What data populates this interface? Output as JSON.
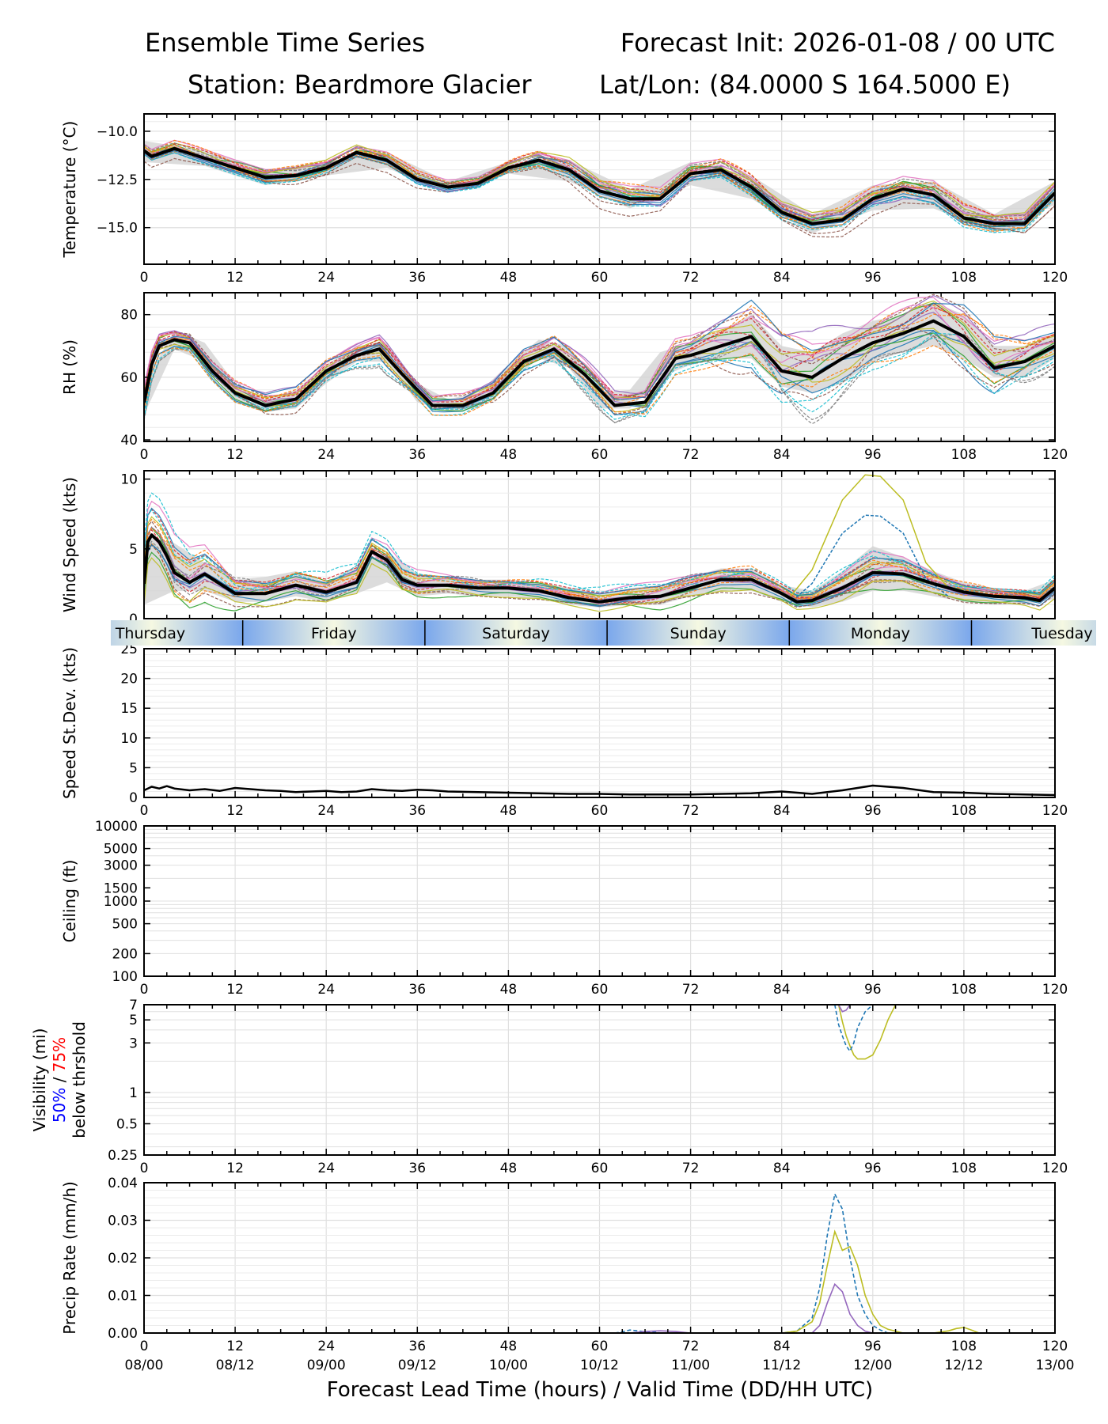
{
  "header": {
    "left_line1": "Ensemble Time Series",
    "right_line1": "Forecast Init: 2026-01-08 / 00 UTC",
    "left_line2": "Station: Beardmore Glacier",
    "right_line2": "Lat/Lon: (84.0000 S 164.5000 E)"
  },
  "colors": {
    "mean": "#000000",
    "spread_band": "#d3d3d3",
    "grid": "#e0e0e0",
    "pct50": "#0000ff",
    "pct75": "#ff0000",
    "members": [
      "#1f77b4",
      "#ff7f0e",
      "#2ca02c",
      "#d62728",
      "#9467bd",
      "#8c564b",
      "#e377c2",
      "#7f7f7f",
      "#bcbd22",
      "#17becf"
    ]
  },
  "chart_data": [
    {
      "id": "temperature",
      "type": "line",
      "ylabel": "Temperature (°C)",
      "ylim": [
        -16.9,
        -9.1
      ],
      "yticks": [
        -10.0,
        -12.5,
        -15.0
      ],
      "ytick_labels": [
        "−10.0",
        "−12.5",
        "−15.0"
      ],
      "xlim": [
        0,
        120
      ],
      "xticks": [
        0,
        12,
        24,
        36,
        48,
        60,
        72,
        84,
        96,
        108,
        120
      ],
      "mean": {
        "x": [
          0,
          1,
          4,
          8,
          12,
          16,
          20,
          24,
          28,
          32,
          36,
          40,
          44,
          48,
          52,
          56,
          60,
          64,
          68,
          72,
          76,
          80,
          84,
          88,
          92,
          96,
          100,
          104,
          108,
          112,
          116,
          120
        ],
        "y": [
          -11.0,
          -11.3,
          -10.9,
          -11.4,
          -11.9,
          -12.4,
          -12.3,
          -11.9,
          -11.1,
          -11.5,
          -12.5,
          -12.9,
          -12.7,
          -11.9,
          -11.5,
          -12.0,
          -13.1,
          -13.5,
          -13.5,
          -12.2,
          -12.0,
          -12.9,
          -14.2,
          -14.8,
          -14.6,
          -13.5,
          -13.0,
          -13.3,
          -14.5,
          -14.8,
          -14.8,
          -13.2
        ]
      },
      "spread": {
        "x": [
          0,
          8,
          16,
          24,
          32,
          40,
          48,
          56,
          64,
          72,
          80,
          88,
          96,
          104,
          112,
          120
        ],
        "lo": [
          -11.6,
          -11.8,
          -12.8,
          -12.3,
          -11.9,
          -13.2,
          -12.2,
          -12.6,
          -14.0,
          -12.8,
          -13.5,
          -15.3,
          -14.1,
          -14.0,
          -15.3,
          -13.8
        ],
        "hi": [
          -10.5,
          -11.0,
          -12.0,
          -11.6,
          -11.1,
          -12.6,
          -11.6,
          -11.5,
          -13.0,
          -11.6,
          -12.3,
          -14.3,
          -12.8,
          -12.6,
          -14.3,
          -12.6
        ]
      },
      "member_spread": [
        0.35,
        0.4,
        0.45,
        0.35,
        0.4,
        0.35,
        0.3,
        0.55,
        0.6,
        0.5,
        0.55,
        0.5,
        0.6,
        0.65,
        0.55,
        0.5
      ]
    },
    {
      "id": "rh",
      "type": "line",
      "ylabel": "RH (%)",
      "ylim": [
        39.5,
        87
      ],
      "yticks": [
        40,
        60,
        80
      ],
      "ytick_labels": [
        "40",
        "60",
        "80"
      ],
      "xlim": [
        0,
        120
      ],
      "xticks": [
        0,
        12,
        24,
        36,
        48,
        60,
        72,
        84,
        96,
        108,
        120
      ],
      "mean": {
        "x": [
          0,
          1,
          2,
          4,
          6,
          9,
          12,
          16,
          20,
          24,
          28,
          31,
          34,
          38,
          42,
          46,
          50,
          54,
          58,
          62,
          66,
          70,
          72,
          76,
          80,
          84,
          88,
          92,
          96,
          100,
          104,
          108,
          112,
          116,
          120
        ],
        "y": [
          52,
          64,
          70,
          72,
          71,
          62,
          55,
          51,
          53,
          62,
          67,
          69,
          61,
          51,
          51,
          55,
          65,
          69,
          61,
          51,
          52,
          66,
          67,
          70,
          73,
          62,
          60,
          66,
          71,
          74,
          78,
          73,
          63,
          65,
          70
        ]
      },
      "spread": {
        "x": [
          0,
          4,
          8,
          12,
          16,
          20,
          24,
          28,
          32,
          36,
          40,
          44,
          48,
          52,
          56,
          60,
          64,
          68,
          72,
          76,
          80,
          84,
          88,
          92,
          96,
          100,
          104,
          108,
          112,
          116,
          120
        ],
        "lo": [
          48,
          69,
          65,
          52,
          49,
          50,
          58,
          65,
          65,
          52,
          49,
          50,
          58,
          66,
          63,
          50,
          50,
          60,
          64,
          66,
          66,
          57,
          55,
          58,
          65,
          68,
          70,
          66,
          60,
          60,
          66
        ],
        "hi": [
          58,
          75,
          71,
          58,
          53,
          56,
          64,
          70,
          71,
          58,
          53,
          55,
          64,
          72,
          70,
          55,
          56,
          68,
          71,
          75,
          80,
          70,
          68,
          74,
          78,
          80,
          84,
          80,
          70,
          70,
          74
        ]
      },
      "member_spread": [
        4,
        3,
        3,
        3,
        3,
        3,
        3,
        3,
        4,
        3,
        3,
        3,
        3,
        3,
        4,
        4,
        4,
        5,
        5,
        7,
        9,
        10,
        10,
        9,
        8,
        8,
        8,
        9,
        8,
        6,
        5
      ]
    },
    {
      "id": "wind_speed",
      "type": "line",
      "ylabel": "Wind Speed (kts)",
      "ylim": [
        0,
        10.6
      ],
      "yticks": [
        0,
        5,
        10
      ],
      "ytick_labels": [
        "0",
        "5",
        "10"
      ],
      "xlim": [
        0,
        120
      ],
      "xticks": [
        0,
        12,
        24,
        36,
        48,
        60,
        72,
        84,
        96,
        108,
        120
      ],
      "mean": {
        "x": [
          0,
          0.5,
          1,
          2,
          3,
          4,
          6,
          8,
          10,
          12,
          16,
          20,
          24,
          28,
          30,
          32,
          34,
          36,
          40,
          44,
          48,
          52,
          56,
          60,
          64,
          68,
          72,
          76,
          80,
          84,
          86,
          88,
          92,
          96,
          100,
          104,
          108,
          112,
          116,
          118,
          120
        ],
        "y": [
          2.5,
          5.5,
          6.0,
          5.5,
          4.5,
          3.3,
          2.6,
          3.2,
          2.5,
          1.8,
          1.8,
          2.4,
          1.9,
          2.6,
          4.8,
          4.2,
          2.8,
          2.4,
          2.4,
          2.2,
          2.2,
          2.0,
          1.5,
          1.2,
          1.5,
          1.6,
          2.2,
          2.8,
          2.8,
          1.8,
          1.2,
          1.3,
          2.2,
          3.3,
          3.2,
          2.5,
          1.9,
          1.6,
          1.5,
          1.3,
          2.2
        ]
      },
      "spread": {
        "x": [
          0,
          4,
          8,
          12,
          16,
          20,
          24,
          28,
          32,
          36,
          40,
          44,
          48,
          52,
          56,
          60,
          64,
          68,
          72,
          76,
          80,
          84,
          88,
          92,
          96,
          100,
          104,
          108,
          112,
          116,
          120
        ],
        "lo": [
          1.0,
          2.0,
          2.0,
          1.2,
          1.2,
          1.6,
          1.2,
          1.8,
          2.6,
          1.6,
          1.8,
          1.6,
          1.6,
          1.4,
          1.0,
          0.8,
          1.0,
          1.0,
          1.6,
          2.0,
          2.0,
          1.2,
          0.8,
          1.2,
          2.0,
          2.0,
          1.6,
          1.2,
          1.0,
          1.0,
          1.4
        ],
        "hi": [
          6.0,
          5.4,
          4.0,
          2.8,
          3.0,
          3.4,
          2.6,
          3.8,
          4.8,
          3.2,
          3.0,
          2.8,
          2.8,
          2.6,
          2.2,
          1.8,
          2.2,
          2.4,
          3.0,
          3.6,
          3.6,
          2.4,
          2.0,
          3.4,
          5.2,
          4.4,
          3.4,
          2.6,
          2.2,
          2.0,
          2.8
        ]
      },
      "member_spread": [
        1.8,
        1.8,
        1.5,
        1.0,
        0.9,
        0.9,
        0.8,
        0.9,
        0.8,
        0.7,
        0.6,
        0.6,
        0.6,
        0.6,
        0.6,
        0.6,
        0.6,
        0.7,
        0.8,
        0.8,
        0.8,
        0.6,
        0.5,
        0.8,
        1.0,
        0.9,
        0.7,
        0.6,
        0.5,
        0.5,
        0.6
      ],
      "outlier_peak": {
        "x": [
          85,
          88,
          92,
          95,
          97,
          100,
          103,
          106
        ],
        "y": [
          1.5,
          3.5,
          8.5,
          10.3,
          10.2,
          8.5,
          4.0,
          2.2
        ]
      }
    },
    {
      "id": "speed_stdev",
      "type": "line",
      "ylabel": "Speed St.Dev. (kts)",
      "ylim": [
        0,
        25
      ],
      "yticks": [
        0,
        5,
        10,
        15,
        20,
        25
      ],
      "ytick_labels": [
        "0",
        "5",
        "10",
        "15",
        "20",
        "25"
      ],
      "xlim": [
        0,
        120
      ],
      "xticks": [
        0,
        12,
        24,
        36,
        48,
        60,
        72,
        84,
        96,
        108,
        120
      ],
      "days": [
        "Thursday",
        "Friday",
        "Saturday",
        "Sunday",
        "Monday",
        "Tuesday"
      ],
      "day_boundaries": [
        13,
        37,
        61,
        85,
        109
      ],
      "mean": {
        "x": [
          0,
          1,
          2,
          3,
          4,
          6,
          8,
          10,
          12,
          14,
          16,
          18,
          20,
          22,
          24,
          26,
          28,
          30,
          32,
          34,
          36,
          38,
          40,
          44,
          48,
          52,
          56,
          60,
          64,
          68,
          72,
          76,
          80,
          84,
          88,
          92,
          96,
          100,
          104,
          108,
          112,
          116,
          120
        ],
        "y": [
          1.2,
          1.8,
          1.5,
          1.9,
          1.5,
          1.2,
          1.4,
          1.1,
          1.6,
          1.4,
          1.2,
          1.1,
          0.9,
          1.0,
          1.1,
          0.9,
          1.0,
          1.4,
          1.2,
          1.1,
          1.3,
          1.2,
          1.0,
          0.9,
          0.8,
          0.7,
          0.6,
          0.6,
          0.5,
          0.5,
          0.5,
          0.6,
          0.7,
          1.0,
          0.6,
          1.2,
          2.0,
          1.6,
          0.9,
          0.8,
          0.6,
          0.5,
          0.4
        ]
      }
    },
    {
      "id": "ceiling",
      "type": "line",
      "scale": "log",
      "ylabel": "Ceiling (ft)",
      "ylim": [
        100,
        10000
      ],
      "yticks": [
        100,
        200,
        500,
        1000,
        1500,
        3000,
        5000,
        10000
      ],
      "ytick_labels": [
        "100",
        "200",
        "500",
        "1000",
        "1500",
        "3000",
        "5000",
        "10000"
      ],
      "xlim": [
        0,
        120
      ],
      "xticks": [
        0,
        12,
        24,
        36,
        48,
        60,
        72,
        84,
        96,
        108,
        120
      ],
      "series": []
    },
    {
      "id": "visibility",
      "type": "line",
      "scale": "log",
      "ylabel_line1": "Visibility (mi)",
      "ylabel_pct50": "50%",
      "ylabel_sep": " / ",
      "ylabel_pct75": "75%",
      "ylabel_line3": "below thrshold",
      "ylim": [
        0.25,
        7
      ],
      "yticks": [
        0.25,
        0.5,
        1,
        3,
        5,
        7
      ],
      "ytick_labels": [
        "0.25",
        "0.5",
        "1",
        "3",
        "5",
        "7"
      ],
      "xlim": [
        0,
        120
      ],
      "xticks": [
        0,
        12,
        24,
        36,
        48,
        60,
        72,
        84,
        96,
        108,
        120
      ],
      "series": [
        {
          "name": "member-yellow",
          "color": "#bcbd22",
          "dash": false,
          "x": [
            91.5,
            92,
            92.5,
            93,
            93.5,
            94,
            95,
            96,
            97,
            98,
            99
          ],
          "y": [
            7,
            4.8,
            3.5,
            2.8,
            2.3,
            2.1,
            2.1,
            2.3,
            3.2,
            5,
            7
          ]
        },
        {
          "name": "member-blue",
          "color": "#1f77b4",
          "dash": true,
          "x": [
            91,
            91.5,
            92,
            92.5,
            93,
            93.5,
            94,
            95,
            96
          ],
          "y": [
            7,
            4.5,
            3.5,
            2.8,
            2.5,
            3,
            4.2,
            6,
            7
          ]
        },
        {
          "name": "member-purple",
          "color": "#9467bd",
          "dash": false,
          "x": [
            91.5,
            92,
            92.5,
            93
          ],
          "y": [
            7,
            6,
            6.2,
            7
          ]
        }
      ]
    },
    {
      "id": "precip_rate",
      "type": "line",
      "ylabel": "Precip Rate (mm/h)",
      "ylim": [
        0,
        0.04
      ],
      "yticks": [
        0.0,
        0.01,
        0.02,
        0.03,
        0.04
      ],
      "ytick_labels": [
        "0.00",
        "0.01",
        "0.02",
        "0.03",
        "0.04"
      ],
      "xlim": [
        0,
        120
      ],
      "xticks": [
        0,
        12,
        24,
        36,
        48,
        60,
        72,
        84,
        96,
        108,
        120
      ],
      "xtick_labels": [
        "0",
        "12",
        "24",
        "36",
        "48",
        "60",
        "72",
        "84",
        "96",
        "108",
        "120"
      ],
      "xtick_labels2": [
        "08/00",
        "08/12",
        "09/00",
        "09/12",
        "10/00",
        "10/12",
        "11/00",
        "11/12",
        "12/00",
        "12/12",
        "13/00"
      ],
      "xlabel": "Forecast Lead Time (hours) / Valid Time (DD/HH UTC)",
      "series": [
        {
          "name": "member-blue",
          "color": "#1f77b4",
          "dash": true,
          "x": [
            62,
            63,
            64,
            65,
            66,
            67,
            68,
            84,
            86,
            88,
            89,
            90,
            91,
            92,
            93,
            94,
            95,
            96,
            97,
            98
          ],
          "y": [
            0,
            0.0003,
            0.0008,
            0.0006,
            0.0003,
            0.0004,
            0,
            0,
            0.0005,
            0.004,
            0.012,
            0.026,
            0.037,
            0.033,
            0.02,
            0.01,
            0.005,
            0.002,
            0.0008,
            0
          ]
        },
        {
          "name": "member-yellow",
          "color": "#bcbd22",
          "dash": false,
          "x": [
            84,
            86,
            88,
            89,
            90,
            91,
            92,
            93,
            94,
            95,
            96,
            97,
            98,
            100,
            104,
            106,
            107,
            108,
            109,
            110
          ],
          "y": [
            0,
            0.0005,
            0.003,
            0.008,
            0.018,
            0.027,
            0.022,
            0.023,
            0.018,
            0.01,
            0.005,
            0.002,
            0.001,
            0,
            0,
            0.0006,
            0.0012,
            0.0015,
            0.0008,
            0
          ]
        },
        {
          "name": "member-purple",
          "color": "#9467bd",
          "dash": false,
          "x": [
            64,
            66,
            68,
            70,
            72,
            88,
            89,
            90,
            91,
            92,
            93,
            94,
            95,
            96
          ],
          "y": [
            0,
            0.0004,
            0.0006,
            0.0004,
            0,
            0,
            0.002,
            0.008,
            0.013,
            0.011,
            0.005,
            0.002,
            0.0005,
            0
          ]
        }
      ]
    }
  ]
}
